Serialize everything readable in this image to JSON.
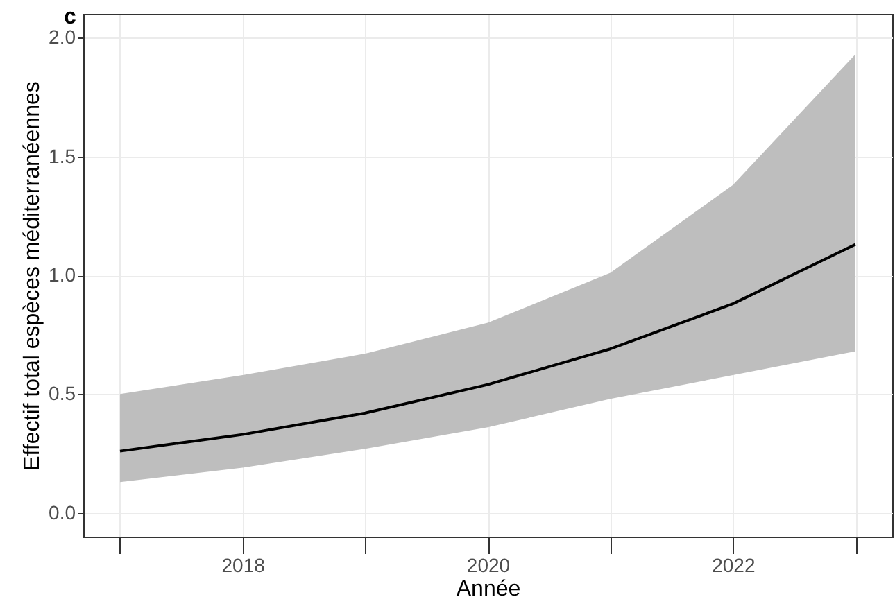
{
  "chart_data": {
    "type": "line",
    "title": "c",
    "xlabel": "Année",
    "ylabel": "Effectif total espèces méditerranéennes",
    "x": [
      2017,
      2018,
      2019,
      2020,
      2021,
      2022,
      2023
    ],
    "series": [
      {
        "color": "#000000",
        "values": [
          0.26,
          0.33,
          0.42,
          0.54,
          0.69,
          0.88,
          1.13
        ],
        "lower": [
          0.13,
          0.19,
          0.27,
          0.36,
          0.48,
          0.58,
          0.68
        ],
        "upper": [
          0.5,
          0.58,
          0.67,
          0.8,
          1.01,
          1.38,
          1.93
        ]
      }
    ],
    "xlim": [
      2016.7,
      2023.3
    ],
    "ylim": [
      -0.1,
      2.1
    ],
    "xticks": [
      {
        "value": 2017,
        "label": null
      },
      2018,
      {
        "value": 2019,
        "label": null
      },
      2020,
      {
        "value": 2021,
        "label": null
      },
      2022,
      {
        "value": 2023,
        "label": null
      }
    ],
    "yticks": [
      {
        "value": 0,
        "label": "0.0"
      },
      {
        "value": 0.5,
        "label": "0.5"
      },
      {
        "value": 1,
        "label": "1.0"
      },
      {
        "value": 1.5,
        "label": "1.5"
      },
      {
        "value": 2,
        "label": "2.0"
      }
    ],
    "grid": true,
    "line_style": "solid",
    "marker": "none"
  }
}
